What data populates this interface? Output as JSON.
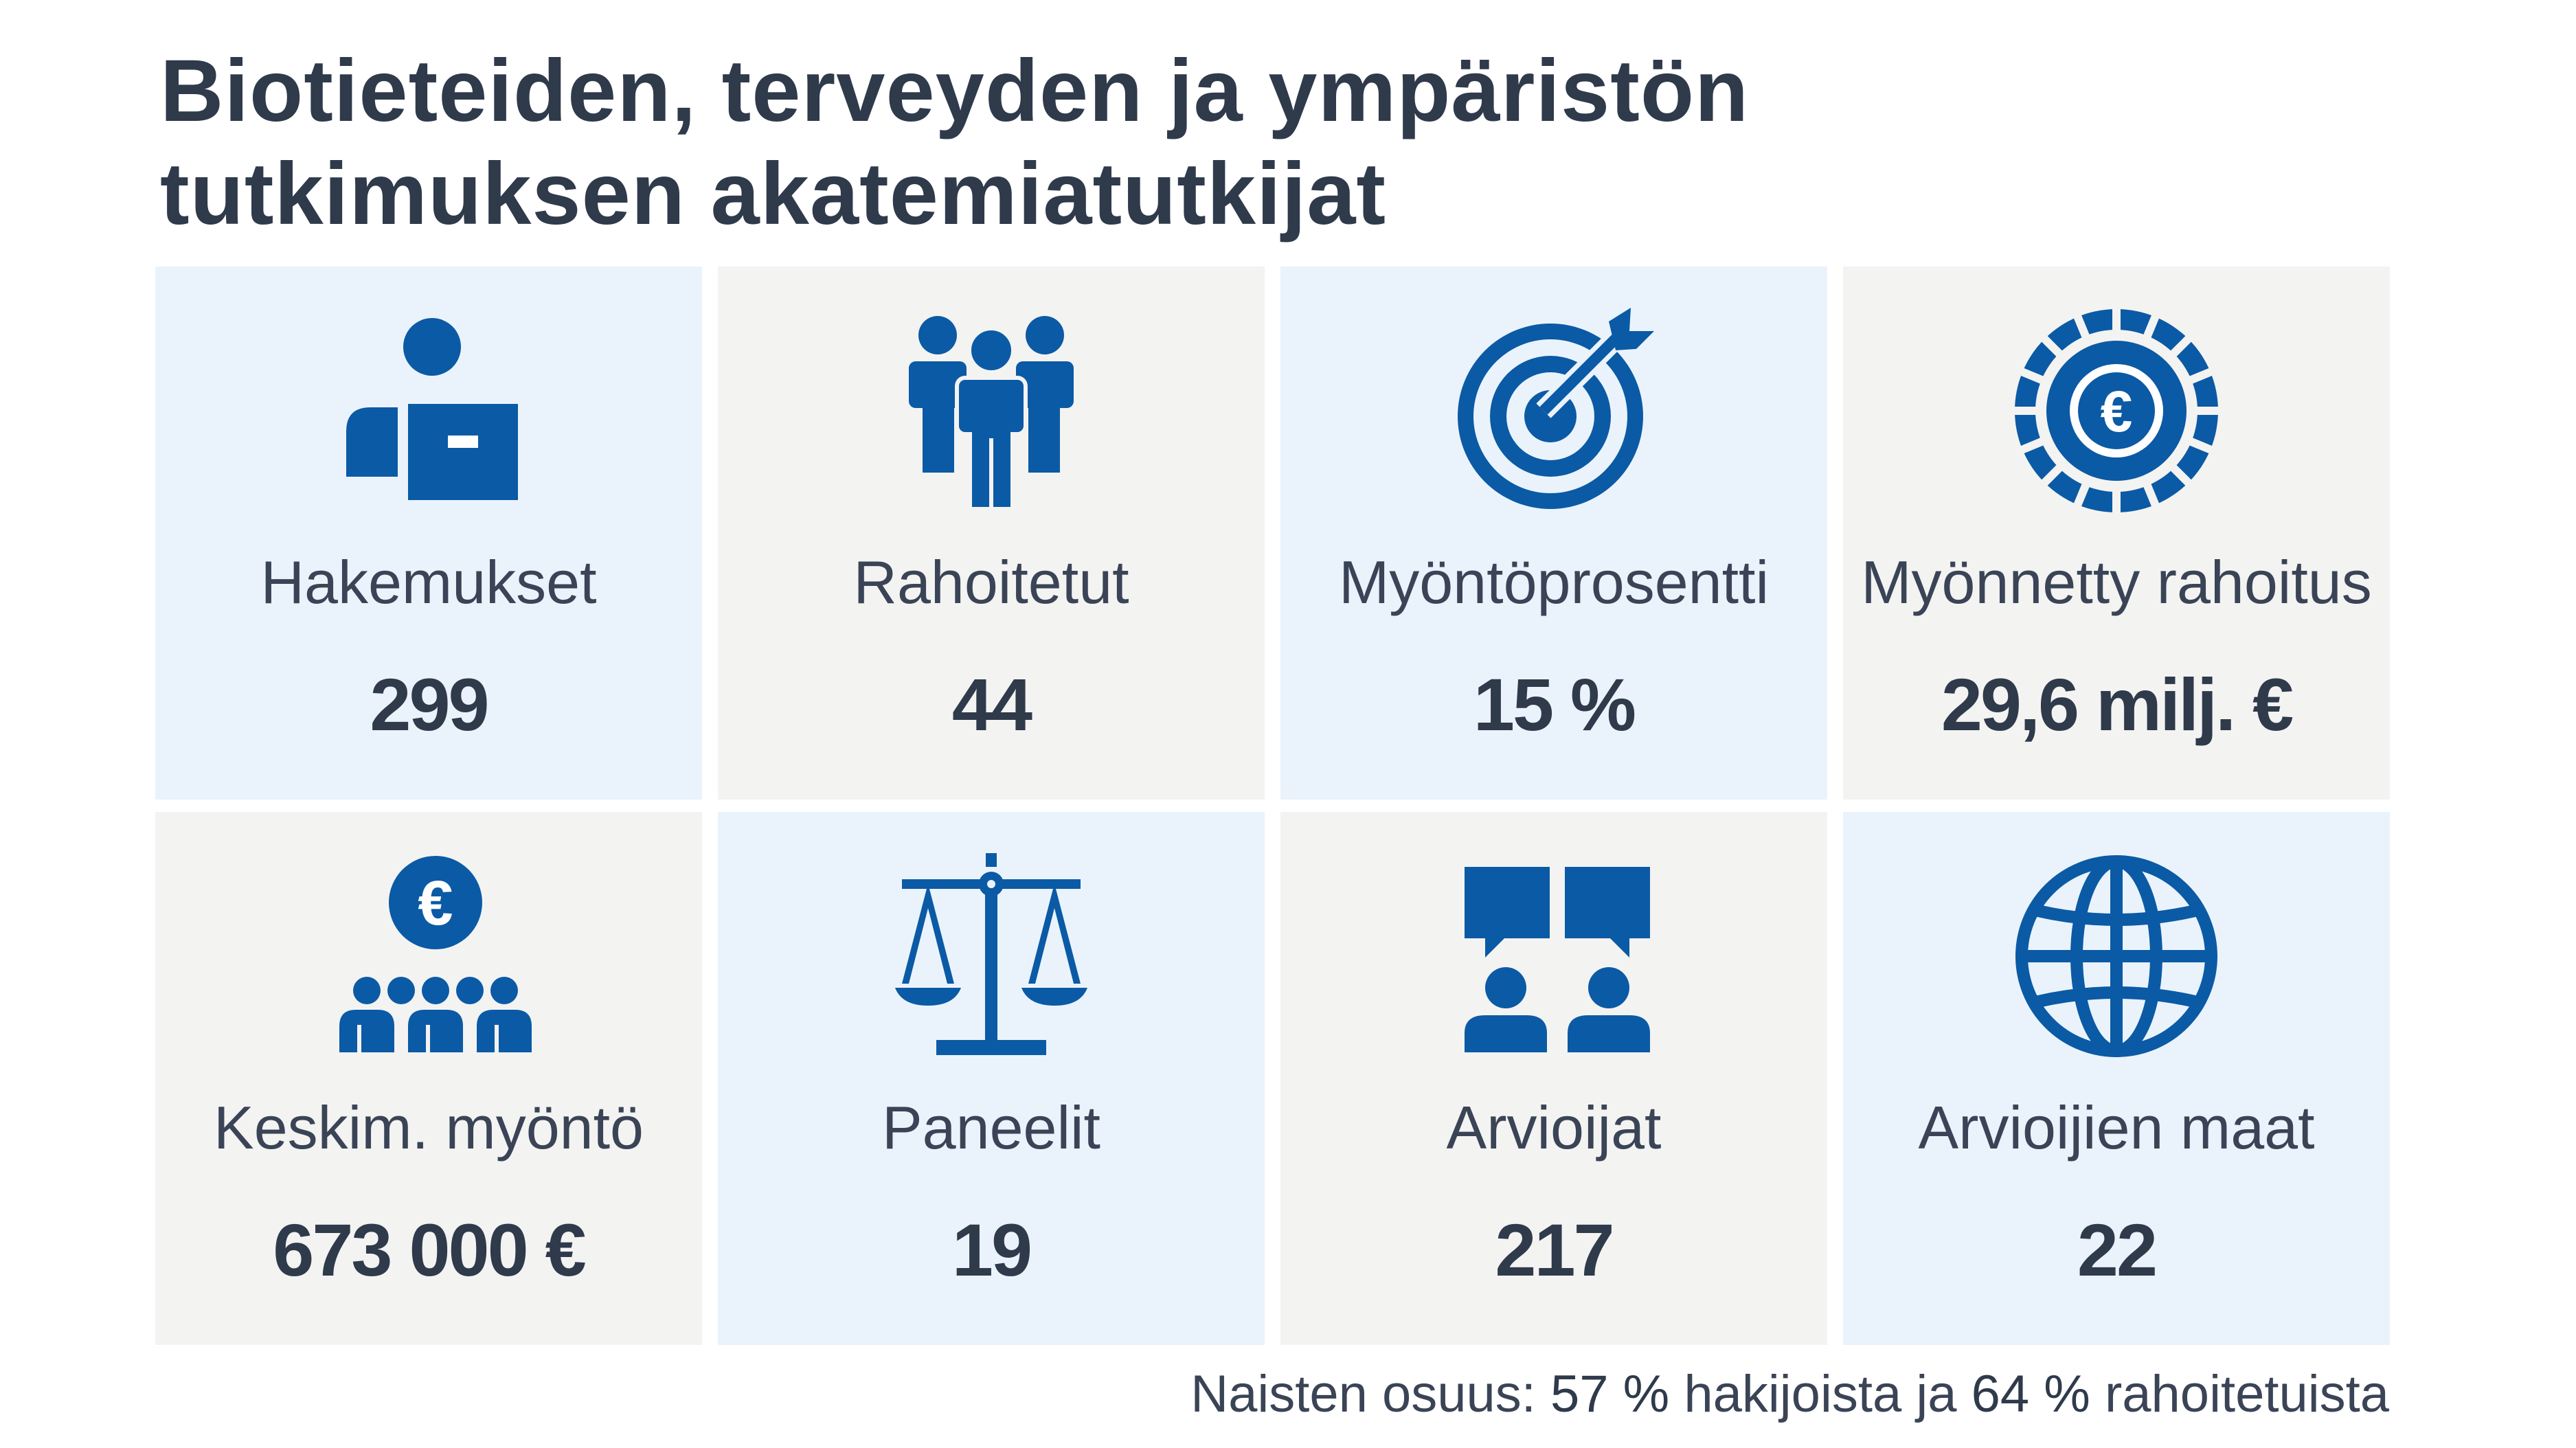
{
  "title": {
    "line1": "Biotieteiden, terveyden ja ympäristön",
    "line2": "tutkimuksen akatemiatutkijat"
  },
  "colors": {
    "icon": "#0b5aa5",
    "text": "#2f3a4b",
    "tile_blue": "#eaf3fb",
    "tile_grey": "#f3f3f2"
  },
  "tiles": [
    {
      "icon": "person-with-document-icon",
      "label": "Hakemukset",
      "value": "299"
    },
    {
      "icon": "group-of-people-icon",
      "label": "Rahoitetut",
      "value": "44"
    },
    {
      "icon": "target-with-arrow-icon",
      "label": "Myöntöprosentti",
      "value": "15 %"
    },
    {
      "icon": "euro-coin-icon",
      "label": "Myönnetty rahoitus",
      "value": "29,6 milj. €"
    },
    {
      "icon": "euro-over-people-icon",
      "label": "Keskim. myöntö",
      "value": "673 000 €"
    },
    {
      "icon": "balance-scale-icon",
      "label": "Paneelit",
      "value": "19"
    },
    {
      "icon": "reviewers-speech-bubbles-icon",
      "label": "Arvioijat",
      "value": "217"
    },
    {
      "icon": "globe-icon",
      "label": "Arvioijien maat",
      "value": "22"
    }
  ],
  "footnote": {
    "prefix": "Naisten osuus: ",
    "applicants_value": "57 %",
    "middle": " hakijoista ja ",
    "funded_value": "64 %",
    "suffix": " rahoitetuista"
  }
}
